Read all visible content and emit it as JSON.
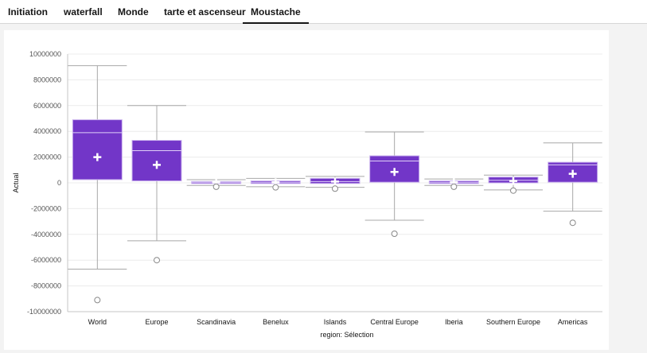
{
  "tabs": [
    {
      "label": "Initiation",
      "active": false
    },
    {
      "label": "waterfall",
      "active": false
    },
    {
      "label": "Monde",
      "active": false
    },
    {
      "label": "tarte et ascenseur",
      "active": false
    },
    {
      "label": "Moustache",
      "active": true
    }
  ],
  "chart_data": {
    "type": "boxplot",
    "xlabel": "region: Sélection",
    "ylabel": "Actual",
    "ylim": [
      -10000000,
      10000000
    ],
    "yticks": [
      10000000,
      8000000,
      6000000,
      4000000,
      2000000,
      0,
      -2000000,
      -4000000,
      -6000000,
      -8000000,
      -10000000
    ],
    "grid": true,
    "color": "#7236c8",
    "categories": [
      "World",
      "Europe",
      "Scandinavia",
      "Benelux",
      "Islands",
      "Central Europe",
      "Iberia",
      "Southern Europe",
      "Americas"
    ],
    "boxes": [
      {
        "whisker_high": 9100000,
        "q3": 4900000,
        "median": 3900000,
        "q1": 250000,
        "whisker_low": -6700000,
        "mean": 2000000,
        "outliers": [
          -9100000
        ]
      },
      {
        "whisker_high": 6000000,
        "q3": 3300000,
        "median": 2500000,
        "q1": 150000,
        "whisker_low": -4500000,
        "mean": 1400000,
        "outliers": [
          -6000000
        ]
      },
      {
        "whisker_high": 250000,
        "q3": 100000,
        "median": 50000,
        "q1": -50000,
        "whisker_low": -200000,
        "mean": 50000,
        "outliers": [
          -300000
        ]
      },
      {
        "whisker_high": 350000,
        "q3": 150000,
        "median": 50000,
        "q1": -50000,
        "whisker_low": -300000,
        "mean": 50000,
        "outliers": [
          -350000
        ]
      },
      {
        "whisker_high": 500000,
        "q3": 350000,
        "median": 100000,
        "q1": -50000,
        "whisker_low": -350000,
        "mean": 100000,
        "outliers": [
          -450000
        ]
      },
      {
        "whisker_high": 3950000,
        "q3": 2100000,
        "median": 1700000,
        "q1": 50000,
        "whisker_low": -2900000,
        "mean": 850000,
        "outliers": [
          -3950000
        ]
      },
      {
        "whisker_high": 300000,
        "q3": 150000,
        "median": 50000,
        "q1": -50000,
        "whisker_low": -200000,
        "mean": 50000,
        "outliers": [
          -300000
        ]
      },
      {
        "whisker_high": 600000,
        "q3": 450000,
        "median": 200000,
        "q1": 0,
        "whisker_low": -550000,
        "mean": 150000,
        "outliers": [
          -600000
        ]
      },
      {
        "whisker_high": 3100000,
        "q3": 1600000,
        "median": 1400000,
        "q1": 50000,
        "whisker_low": -2200000,
        "mean": 700000,
        "outliers": [
          -3100000
        ]
      }
    ]
  }
}
